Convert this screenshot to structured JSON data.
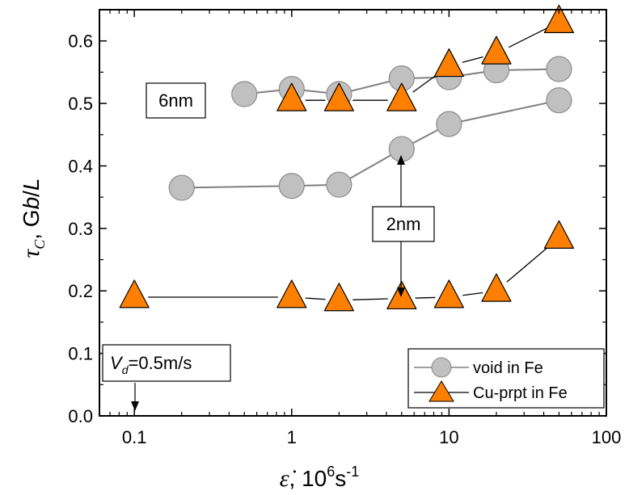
{
  "chart_data": {
    "type": "scatter",
    "x_axis": {
      "scale": "log",
      "range": [
        0.06,
        100
      ],
      "ticks": [
        0.1,
        1,
        10,
        100
      ],
      "tick_labels": [
        "0.1",
        "1",
        "10",
        "100"
      ],
      "label_symbol": "ε̇",
      "label_text": ", 10",
      "label_sup": "6",
      "label_unit": "s",
      "label_unit_sup": "-1"
    },
    "y_axis": {
      "scale": "linear",
      "range": [
        0.0,
        0.65
      ],
      "ticks": [
        0.0,
        0.1,
        0.2,
        0.3,
        0.4,
        0.5,
        0.6
      ],
      "tick_labels": [
        "0.0",
        "0.1",
        "0.2",
        "0.3",
        "0.4",
        "0.5",
        "0.6"
      ],
      "label_symbol": "τ",
      "label_sub": "C",
      "label_text_pre": ", G",
      "label_b": "b",
      "label_slash": "/",
      "label_L": "L"
    },
    "grid": false,
    "legend_position": "bottom-right",
    "series": [
      {
        "name": "void in Fe",
        "marker": "circle",
        "color": "#c0c0c0",
        "line_color": "#808080",
        "groups": [
          {
            "label": "6nm",
            "x": [
              0.5,
              1,
              2,
              5,
              10,
              20,
              50
            ],
            "y": [
              0.515,
              0.523,
              0.515,
              0.54,
              0.542,
              0.553,
              0.555
            ]
          },
          {
            "label": "2nm",
            "x": [
              0.2,
              1,
              2,
              5,
              10,
              50
            ],
            "y": [
              0.365,
              0.368,
              0.37,
              0.427,
              0.467,
              0.505
            ]
          }
        ]
      },
      {
        "name": "Cu-prpt in Fe",
        "marker": "triangle",
        "color": "#ff8000",
        "line_color": "#000000",
        "groups": [
          {
            "label": "6nm",
            "x": [
              1,
              2,
              5,
              10,
              20,
              50
            ],
            "y": [
              0.505,
              0.505,
              0.505,
              0.56,
              0.58,
              0.63
            ]
          },
          {
            "label": "2nm",
            "x": [
              0.1,
              1,
              2,
              5,
              10,
              20,
              50
            ],
            "y": [
              0.19,
              0.19,
              0.185,
              0.188,
              0.19,
              0.2,
              0.285
            ]
          }
        ]
      }
    ],
    "annotations": {
      "size_6nm": "6nm",
      "size_2nm": "2nm",
      "vd_symbol": "V",
      "vd_sub": "d",
      "vd_value": "=0.5m/s"
    }
  }
}
